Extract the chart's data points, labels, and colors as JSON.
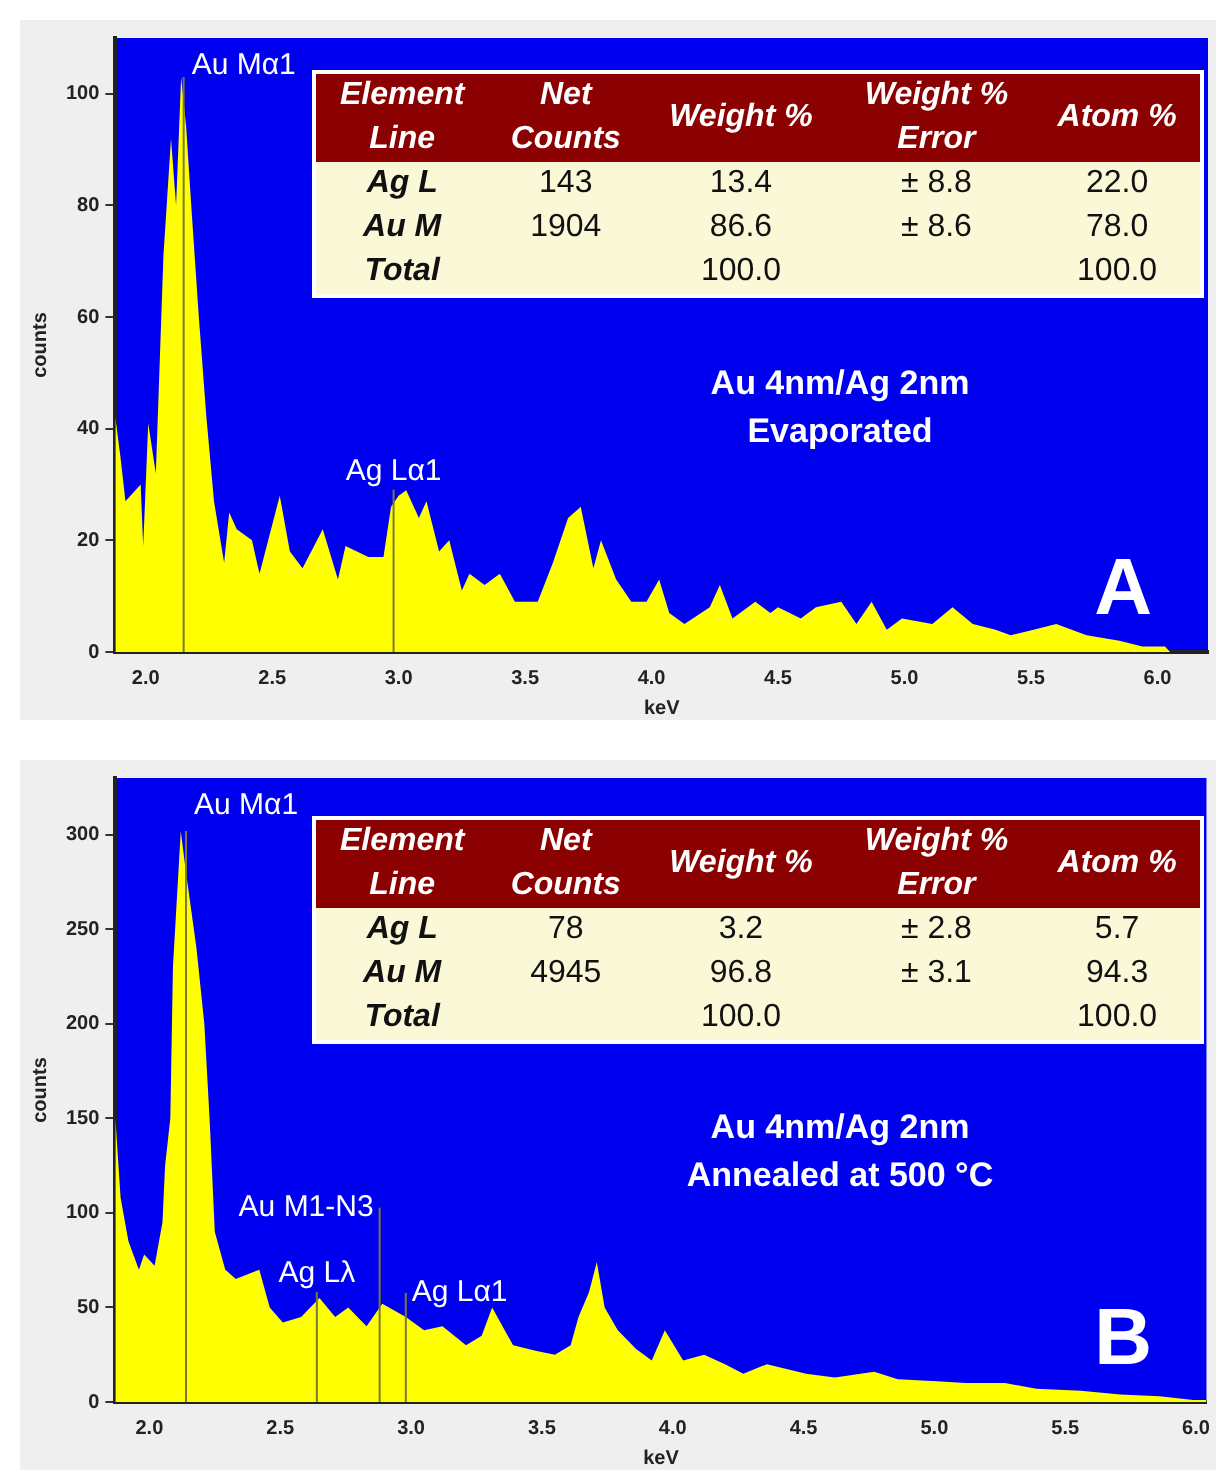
{
  "chart_data": [
    {
      "type": "area",
      "title": "A",
      "subtitle": "Au 4nm/Ag 2nm\nEvaporated",
      "xlabel": "keV",
      "ylabel": "counts",
      "grid": false,
      "legend": false,
      "xlim": [
        1.88,
        6.2
      ],
      "xticks": [
        {
          "value": 2,
          "label": "2.0"
        },
        {
          "value": 2.5,
          "label": "2.5"
        },
        {
          "value": 3,
          "label": "3.0"
        },
        {
          "value": 3.5,
          "label": "3.5"
        },
        {
          "value": 4,
          "label": "4.0"
        },
        {
          "value": 4.5,
          "label": "4.5"
        },
        {
          "value": 5,
          "label": "5.0"
        },
        {
          "value": 5.5,
          "label": "5.5"
        },
        {
          "value": 6,
          "label": "6.0"
        }
      ],
      "ylim": [
        0,
        110
      ],
      "yticks": [
        0,
        20,
        40,
        60,
        80,
        100
      ],
      "series": [
        {
          "color": "#ffff00",
          "x": [
            1.88,
            1.9,
            1.92,
            1.98,
            1.99,
            2.01,
            2.04,
            2.07,
            2.1,
            2.12,
            2.14,
            2.16,
            2.18,
            2.21,
            2.24,
            2.27,
            2.31,
            2.33,
            2.36,
            2.42,
            2.45,
            2.53,
            2.57,
            2.62,
            2.7,
            2.76,
            2.79,
            2.88,
            2.94,
            2.97,
            3.0,
            3.03,
            3.08,
            3.11,
            3.16,
            3.2,
            3.25,
            3.28,
            3.34,
            3.4,
            3.46,
            3.55,
            3.61,
            3.67,
            3.72,
            3.77,
            3.8,
            3.86,
            3.92,
            3.98,
            4.03,
            4.07,
            4.13,
            4.23,
            4.27,
            4.32,
            4.41,
            4.47,
            4.5,
            4.59,
            4.65,
            4.75,
            4.81,
            4.87,
            4.93,
            4.99,
            5.11,
            5.19,
            5.27,
            5.36,
            5.42,
            5.51,
            5.6,
            5.72,
            5.85,
            5.94,
            6.03,
            6.05,
            6.2
          ],
          "values": [
            42,
            35,
            27,
            30,
            19,
            41,
            32,
            71,
            92,
            80,
            103,
            94,
            80,
            60,
            42,
            27,
            16,
            25,
            22,
            20,
            14,
            28,
            18,
            15,
            22,
            13,
            19,
            17,
            17,
            26,
            28,
            29,
            24,
            27,
            18,
            20,
            11,
            14,
            12,
            14,
            9,
            9,
            16,
            24,
            26,
            15,
            20,
            13,
            9,
            9,
            13,
            7,
            5,
            8,
            12,
            6,
            9,
            7,
            8,
            6,
            8,
            9,
            5,
            9,
            4,
            6,
            5,
            8,
            5,
            4,
            3,
            4,
            5,
            3,
            2,
            1,
            1,
            0,
            0
          ]
        }
      ],
      "ref_lines": [
        {
          "axis": "x",
          "value": 2.15,
          "label": "Au Mα1",
          "color": "#7a7a30"
        },
        {
          "axis": "x",
          "value": 2.98,
          "label": "Ag Lα1",
          "color": "#7a7a30"
        }
      ],
      "annotations": [
        "Element\nLine",
        "Net\nCounts",
        "Weight %",
        "Weight %\nError",
        "Atom %",
        "Ag L",
        "143",
        "13.4",
        "± 8.8",
        "22.0",
        "Au M",
        "1904",
        "86.6",
        "± 8.6",
        "78.0",
        "Total",
        null,
        "100.0",
        null,
        "100.0"
      ]
    },
    {
      "type": "area",
      "title": "B",
      "subtitle": "Au 4nm/Ag 2nm\nAnnealed at 500 °C",
      "xlabel": "keV",
      "ylabel": "counts",
      "grid": false,
      "legend": false,
      "xlim": [
        1.87,
        6.04
      ],
      "xticks": [
        {
          "value": 2,
          "label": "2.0"
        },
        {
          "value": 2.5,
          "label": "2.5"
        },
        {
          "value": 3,
          "label": "3.0"
        },
        {
          "value": 3.5,
          "label": "3.5"
        },
        {
          "value": 4,
          "label": "4.0"
        },
        {
          "value": 4.5,
          "label": "4.5"
        },
        {
          "value": 5,
          "label": "5.0"
        },
        {
          "value": 5.5,
          "label": "5.5"
        },
        {
          "value": 6,
          "label": "6.0"
        }
      ],
      "ylim": [
        0,
        330
      ],
      "yticks": [
        0,
        50,
        100,
        150,
        200,
        250,
        300
      ],
      "series": [
        {
          "color": "#ffff00",
          "x": [
            1.87,
            1.89,
            1.92,
            1.96,
            1.98,
            2.02,
            2.05,
            2.06,
            2.08,
            2.09,
            2.12,
            2.14,
            2.16,
            2.18,
            2.21,
            2.23,
            2.25,
            2.29,
            2.33,
            2.42,
            2.46,
            2.51,
            2.58,
            2.65,
            2.71,
            2.76,
            2.83,
            2.89,
            2.98,
            3.05,
            3.12,
            3.21,
            3.27,
            3.31,
            3.39,
            3.48,
            3.55,
            3.61,
            3.64,
            3.68,
            3.71,
            3.74,
            3.79,
            3.86,
            3.92,
            3.97,
            4.04,
            4.12,
            4.2,
            4.27,
            4.36,
            4.51,
            4.62,
            4.77,
            4.86,
            5.01,
            5.12,
            5.27,
            5.39,
            5.56,
            5.71,
            5.86,
            5.93,
            5.99,
            6.04
          ],
          "values": [
            150,
            108,
            85,
            70,
            78,
            72,
            95,
            125,
            150,
            230,
            302,
            280,
            260,
            240,
            200,
            150,
            90,
            70,
            65,
            70,
            50,
            42,
            45,
            55,
            45,
            50,
            40,
            52,
            45,
            38,
            40,
            30,
            35,
            50,
            30,
            27,
            25,
            30,
            45,
            58,
            74,
            50,
            38,
            28,
            22,
            38,
            22,
            25,
            20,
            15,
            20,
            15,
            13,
            16,
            12,
            11,
            10,
            10,
            7,
            6,
            4,
            3,
            2,
            1,
            1
          ]
        }
      ],
      "ref_lines": [
        {
          "axis": "x",
          "value": 2.14,
          "label": "Au Mα1",
          "color": "#7a7a30"
        },
        {
          "axis": "x",
          "value": 2.64,
          "label": "Ag Lλ",
          "color": "#7a7a30"
        },
        {
          "axis": "x",
          "value": 2.88,
          "label": "Au M1-N3",
          "color": "#7a7a30"
        },
        {
          "axis": "x",
          "value": 2.98,
          "label": "Ag Lα1",
          "color": "#7a7a30"
        }
      ],
      "annotations": [
        "Element\nLine",
        "Net\nCounts",
        "Weight %",
        "Weight %\nError",
        "Atom %",
        "Ag L",
        "78",
        "3.2",
        "± 2.8",
        "5.7",
        "Au M",
        "4945",
        "96.8",
        "± 3.1",
        "94.3",
        "Total",
        null,
        "100.0",
        null,
        "100.0"
      ]
    }
  ]
}
